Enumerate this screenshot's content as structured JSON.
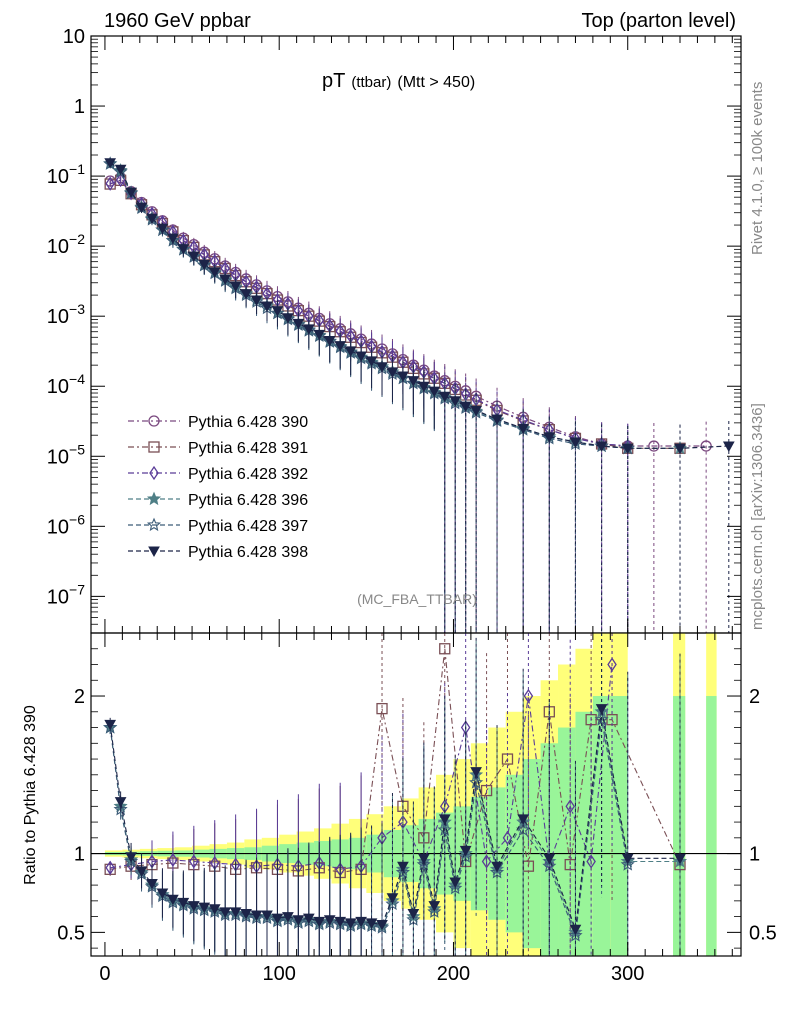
{
  "header": {
    "left": "1960 GeV ppbar",
    "right": "Top (parton level)"
  },
  "side": {
    "top": "Rivet 4.1.0, ≥ 100k events",
    "bottom": "mcplots.cern.ch [arXiv:1306.3436]"
  },
  "chart_data": [
    {
      "type": "line",
      "panel": "main",
      "title_main": "pT",
      "title_sub": "(ttbar)",
      "title_cut": "(Mtt > 450)",
      "analysis": "(MC_FBA_TTBAR)",
      "xlabel": "",
      "ylabel": "",
      "yscale": "log",
      "xlim": [
        -8,
        365
      ],
      "ylim": [
        3e-08,
        10
      ],
      "x_ticks": [
        "0",
        "100",
        "200",
        "300"
      ],
      "y_ticks": [
        "10",
        "1",
        "10^-1",
        "10^-2",
        "10^-3",
        "10^-4",
        "10^-5",
        "10^-6",
        "10^-7"
      ],
      "series": [
        {
          "name": "Pythia 6.428 390",
          "color": "#7b4a80",
          "marker": "circle",
          "x": [
            3,
            9,
            15,
            21,
            27,
            33,
            39,
            45,
            51,
            57,
            63,
            69,
            75,
            81,
            87,
            93,
            99,
            105,
            111,
            117,
            123,
            129,
            135,
            141,
            147,
            153,
            159,
            165,
            171,
            177,
            183,
            189,
            195,
            201,
            207,
            213,
            225,
            240,
            255,
            270,
            285,
            300,
            315,
            345
          ],
          "y": [
            0.085,
            0.095,
            0.06,
            0.042,
            0.031,
            0.023,
            0.017,
            0.013,
            0.0105,
            0.0082,
            0.0066,
            0.0052,
            0.0042,
            0.0034,
            0.0028,
            0.0023,
            0.0019,
            0.0016,
            0.0013,
            0.0011,
            0.00093,
            0.00078,
            0.00066,
            0.00056,
            0.00047,
            0.0004,
            0.00034,
            0.00029,
            0.00024,
            0.0002,
            0.00017,
            0.00014,
            0.00012,
            0.0001,
            8.6e-05,
            7.2e-05,
            5.2e-05,
            3.6e-05,
            2.6e-05,
            1.9e-05,
            1.5e-05,
            1.4e-05,
            1.4e-05,
            1.4e-05
          ]
        },
        {
          "name": "Pythia 6.428 391",
          "color": "#7a4f55",
          "marker": "square",
          "x": [
            3,
            9,
            15,
            21,
            27,
            33,
            39,
            45,
            51,
            57,
            63,
            69,
            75,
            81,
            87,
            93,
            99,
            105,
            111,
            117,
            123,
            129,
            135,
            141,
            147,
            153,
            159,
            165,
            171,
            177,
            183,
            189,
            195,
            201,
            207,
            213,
            225,
            240,
            255,
            270,
            285,
            300,
            330
          ],
          "y": [
            0.077,
            0.087,
            0.056,
            0.039,
            0.028,
            0.021,
            0.016,
            0.012,
            0.0096,
            0.0075,
            0.006,
            0.0048,
            0.0038,
            0.0031,
            0.0025,
            0.0021,
            0.0017,
            0.0014,
            0.0012,
            0.001,
            0.00085,
            0.00071,
            0.0006,
            0.0005,
            0.00042,
            0.00036,
            0.0003,
            0.00026,
            0.00022,
            0.00018,
            0.00015,
            0.00013,
            0.00011,
            9e-05,
            7.5e-05,
            6.3e-05,
            4.5e-05,
            3.2e-05,
            2.4e-05,
            1.8e-05,
            1.5e-05,
            1.3e-05,
            1.3e-05
          ]
        },
        {
          "name": "Pythia 6.428 392",
          "color": "#5a3c98",
          "marker": "diamond",
          "x": [
            3,
            9,
            15,
            21,
            27,
            33,
            39,
            45,
            51,
            57,
            63,
            69,
            75,
            81,
            87,
            93,
            99,
            105,
            111,
            117,
            123,
            129,
            135,
            141,
            147,
            153,
            159,
            165,
            171,
            177,
            183,
            189,
            195,
            201,
            207,
            213,
            225,
            240,
            255,
            270,
            285,
            300
          ],
          "y": [
            0.078,
            0.088,
            0.057,
            0.04,
            0.029,
            0.022,
            0.016,
            0.012,
            0.0097,
            0.0076,
            0.0061,
            0.0048,
            0.0039,
            0.0031,
            0.0026,
            0.0021,
            0.0017,
            0.0015,
            0.0012,
            0.001,
            0.00087,
            0.00073,
            0.00061,
            0.00052,
            0.00044,
            0.00037,
            0.00031,
            0.00027,
            0.00022,
            0.00019,
            0.00016,
            0.00013,
            0.00011,
            9.3e-05,
            7.7e-05,
            6.5e-05,
            4.6e-05,
            3.3e-05,
            2.4e-05,
            1.8e-05,
            1.5e-05,
            1.4e-05
          ]
        },
        {
          "name": "Pythia 6.428 396",
          "color": "#4f7f86",
          "marker": "star-filled",
          "x": [
            3,
            9,
            15,
            21,
            27,
            33,
            39,
            45,
            51,
            57,
            63,
            69,
            75,
            81,
            87,
            93,
            99,
            105,
            111,
            117,
            123,
            129,
            135,
            141,
            147,
            153,
            159,
            165,
            171,
            177,
            183,
            189,
            195,
            201,
            207,
            213,
            225,
            240,
            255,
            270,
            285,
            300,
            330
          ],
          "y": [
            0.15,
            0.12,
            0.058,
            0.036,
            0.025,
            0.017,
            0.012,
            0.009,
            0.0071,
            0.0054,
            0.0042,
            0.0033,
            0.0026,
            0.0021,
            0.0017,
            0.0014,
            0.0011,
            0.00093,
            0.00077,
            0.00064,
            0.00053,
            0.00044,
            0.00037,
            0.00031,
            0.00026,
            0.00022,
            0.00019,
            0.00016,
            0.00013,
            0.00011,
            9.6e-05,
            8.2e-05,
            7e-05,
            6e-05,
            5.1e-05,
            4.4e-05,
            3.3e-05,
            2.5e-05,
            1.9e-05,
            1.6e-05,
            1.4e-05,
            1.3e-05,
            1.3e-05
          ]
        },
        {
          "name": "Pythia 6.428 397",
          "color": "#3c5c78",
          "marker": "star-open",
          "x": [
            3,
            9,
            15,
            21,
            27,
            33,
            39,
            45,
            51,
            57,
            63,
            69,
            75,
            81,
            87,
            93,
            99,
            105,
            111,
            117,
            123,
            129,
            135,
            141,
            147,
            153,
            159,
            165,
            171,
            177,
            183,
            189,
            195,
            201,
            207,
            213,
            225,
            240,
            255,
            270,
            285,
            300
          ],
          "y": [
            0.15,
            0.115,
            0.057,
            0.035,
            0.024,
            0.017,
            0.012,
            0.0089,
            0.007,
            0.0053,
            0.0041,
            0.0032,
            0.0025,
            0.002,
            0.0016,
            0.0013,
            0.0011,
            0.0009,
            0.00075,
            0.00062,
            0.00052,
            0.00043,
            0.00036,
            0.0003,
            0.00025,
            0.00021,
            0.00018,
            0.00015,
            0.00013,
            0.00011,
            9.3e-05,
            7.9e-05,
            6.7e-05,
            5.7e-05,
            4.9e-05,
            4.2e-05,
            3.2e-05,
            2.4e-05,
            1.8e-05,
            1.5e-05,
            1.4e-05,
            1.3e-05
          ]
        },
        {
          "name": "Pythia 6.428 398",
          "color": "#1c2448",
          "marker": "triangle-down",
          "x": [
            3,
            9,
            15,
            21,
            27,
            33,
            39,
            45,
            51,
            57,
            63,
            69,
            75,
            81,
            87,
            93,
            99,
            105,
            111,
            117,
            123,
            129,
            135,
            141,
            147,
            153,
            159,
            165,
            171,
            177,
            183,
            189,
            195,
            201,
            207,
            213,
            225,
            240,
            255,
            270,
            285,
            300,
            330,
            358
          ],
          "y": [
            0.155,
            0.125,
            0.059,
            0.036,
            0.025,
            0.018,
            0.013,
            0.0092,
            0.0072,
            0.0055,
            0.0043,
            0.0034,
            0.0027,
            0.0021,
            0.0017,
            0.0014,
            0.0012,
            0.00095,
            0.00079,
            0.00066,
            0.00055,
            0.00045,
            0.00038,
            0.00032,
            0.00027,
            0.00023,
            0.00019,
            0.00016,
            0.00014,
            0.00012,
            0.0001,
            8.5e-05,
            7.2e-05,
            6.2e-05,
            5.2e-05,
            4.5e-05,
            3.4e-05,
            2.5e-05,
            1.9e-05,
            1.6e-05,
            1.4e-05,
            1.3e-05,
            1.3e-05,
            1.4e-05
          ]
        }
      ]
    },
    {
      "type": "line",
      "panel": "ratio",
      "ylabel": "Ratio to Pythia 6.428 390",
      "xlim": [
        -8,
        365
      ],
      "ylim": [
        0.35,
        2.4
      ],
      "y_ticks": [
        "0.5",
        "1",
        "2"
      ],
      "reference": 1,
      "bands": {
        "x": [
          0,
          10,
          20,
          30,
          40,
          50,
          60,
          70,
          80,
          90,
          100,
          110,
          120,
          130,
          140,
          150,
          160,
          170,
          180,
          190,
          200,
          210,
          220,
          230,
          240,
          250,
          260,
          270,
          280,
          290
        ],
        "yellow_half": [
          0.02,
          0.025,
          0.03,
          0.035,
          0.04,
          0.05,
          0.06,
          0.07,
          0.09,
          0.1,
          0.12,
          0.14,
          0.16,
          0.19,
          0.22,
          0.25,
          0.3,
          0.35,
          0.42,
          0.5,
          0.6,
          0.7,
          0.8,
          0.9,
          1.0,
          1.1,
          1.2,
          1.3,
          1.4,
          1.5
        ],
        "green_half": [
          0.01,
          0.012,
          0.015,
          0.018,
          0.02,
          0.025,
          0.03,
          0.035,
          0.04,
          0.05,
          0.06,
          0.07,
          0.08,
          0.09,
          0.1,
          0.12,
          0.15,
          0.18,
          0.22,
          0.26,
          0.3,
          0.36,
          0.42,
          0.5,
          0.6,
          0.7,
          0.8,
          0.9,
          1.0,
          1.1
        ]
      },
      "series": [
        {
          "name": "Pythia 6.428 391",
          "x": [
            3,
            15,
            27,
            39,
            51,
            63,
            75,
            87,
            99,
            111,
            123,
            135,
            147,
            159,
            171,
            183,
            195,
            207,
            219,
            231,
            243,
            255,
            267,
            279,
            291,
            330
          ],
          "y": [
            0.9,
            0.92,
            0.93,
            0.94,
            0.93,
            0.92,
            0.9,
            0.91,
            0.9,
            0.89,
            0.91,
            0.88,
            0.9,
            1.92,
            1.3,
            1.1,
            2.3,
            0.95,
            1.4,
            1.6,
            0.92,
            1.9,
            0.93,
            1.85,
            1.85,
            0.93
          ]
        },
        {
          "name": "Pythia 6.428 392",
          "x": [
            3,
            15,
            27,
            39,
            51,
            63,
            75,
            87,
            99,
            111,
            123,
            135,
            147,
            159,
            171,
            183,
            195,
            207,
            219,
            231,
            243,
            255,
            267,
            279,
            291
          ],
          "y": [
            0.91,
            0.93,
            0.95,
            0.96,
            0.95,
            0.94,
            0.93,
            0.92,
            0.93,
            0.92,
            0.94,
            0.9,
            0.92,
            1.1,
            1.2,
            0.95,
            1.3,
            1.8,
            0.95,
            1.1,
            2.0,
            0.94,
            1.3,
            0.95,
            2.2
          ]
        },
        {
          "name": "Pythia 6.428 396",
          "x": [
            3,
            9,
            15,
            21,
            27,
            33,
            39,
            45,
            51,
            57,
            63,
            69,
            75,
            81,
            87,
            93,
            99,
            105,
            111,
            117,
            123,
            129,
            135,
            141,
            147,
            153,
            159,
            165,
            171,
            177,
            183,
            189,
            195,
            201,
            207,
            213,
            225,
            240,
            255,
            270,
            285,
            300,
            330
          ],
          "y": [
            1.8,
            1.3,
            0.96,
            0.88,
            0.8,
            0.74,
            0.7,
            0.68,
            0.66,
            0.65,
            0.64,
            0.62,
            0.62,
            0.61,
            0.6,
            0.6,
            0.58,
            0.59,
            0.57,
            0.58,
            0.56,
            0.57,
            0.56,
            0.55,
            0.56,
            0.55,
            0.54,
            0.7,
            0.9,
            0.6,
            0.95,
            0.65,
            1.2,
            0.8,
            1.0,
            1.5,
            0.9,
            1.2,
            0.95,
            0.5,
            1.9,
            0.95,
            0.95
          ]
        },
        {
          "name": "Pythia 6.428 397",
          "x": [
            3,
            9,
            15,
            21,
            27,
            33,
            39,
            45,
            51,
            57,
            63,
            69,
            75,
            81,
            87,
            93,
            99,
            105,
            111,
            117,
            123,
            129,
            135,
            141,
            147,
            153,
            159,
            165,
            171,
            177,
            183,
            189,
            195,
            201,
            207,
            213,
            225,
            240,
            255,
            270,
            285,
            300
          ],
          "y": [
            1.8,
            1.28,
            0.95,
            0.87,
            0.79,
            0.73,
            0.69,
            0.67,
            0.65,
            0.64,
            0.63,
            0.61,
            0.61,
            0.6,
            0.59,
            0.59,
            0.57,
            0.58,
            0.56,
            0.57,
            0.55,
            0.56,
            0.55,
            0.54,
            0.55,
            0.54,
            0.53,
            0.68,
            0.88,
            0.58,
            0.93,
            0.63,
            1.15,
            0.78,
            0.98,
            1.45,
            0.88,
            1.15,
            0.92,
            0.48,
            1.85,
            0.93
          ]
        },
        {
          "name": "Pythia 6.428 398",
          "x": [
            3,
            9,
            15,
            21,
            27,
            33,
            39,
            45,
            51,
            57,
            63,
            69,
            75,
            81,
            87,
            93,
            99,
            105,
            111,
            117,
            123,
            129,
            135,
            141,
            147,
            153,
            159,
            165,
            171,
            177,
            183,
            189,
            195,
            201,
            207,
            213,
            225,
            240,
            255,
            270,
            285,
            300,
            330
          ],
          "y": [
            1.82,
            1.33,
            0.98,
            0.89,
            0.81,
            0.75,
            0.71,
            0.69,
            0.67,
            0.66,
            0.65,
            0.63,
            0.63,
            0.62,
            0.61,
            0.61,
            0.59,
            0.6,
            0.58,
            0.59,
            0.57,
            0.58,
            0.57,
            0.56,
            0.57,
            0.56,
            0.55,
            0.72,
            0.92,
            0.62,
            0.97,
            0.67,
            1.22,
            0.82,
            1.02,
            1.52,
            0.92,
            1.22,
            0.97,
            0.52,
            1.92,
            0.97,
            0.97
          ]
        }
      ]
    }
  ]
}
